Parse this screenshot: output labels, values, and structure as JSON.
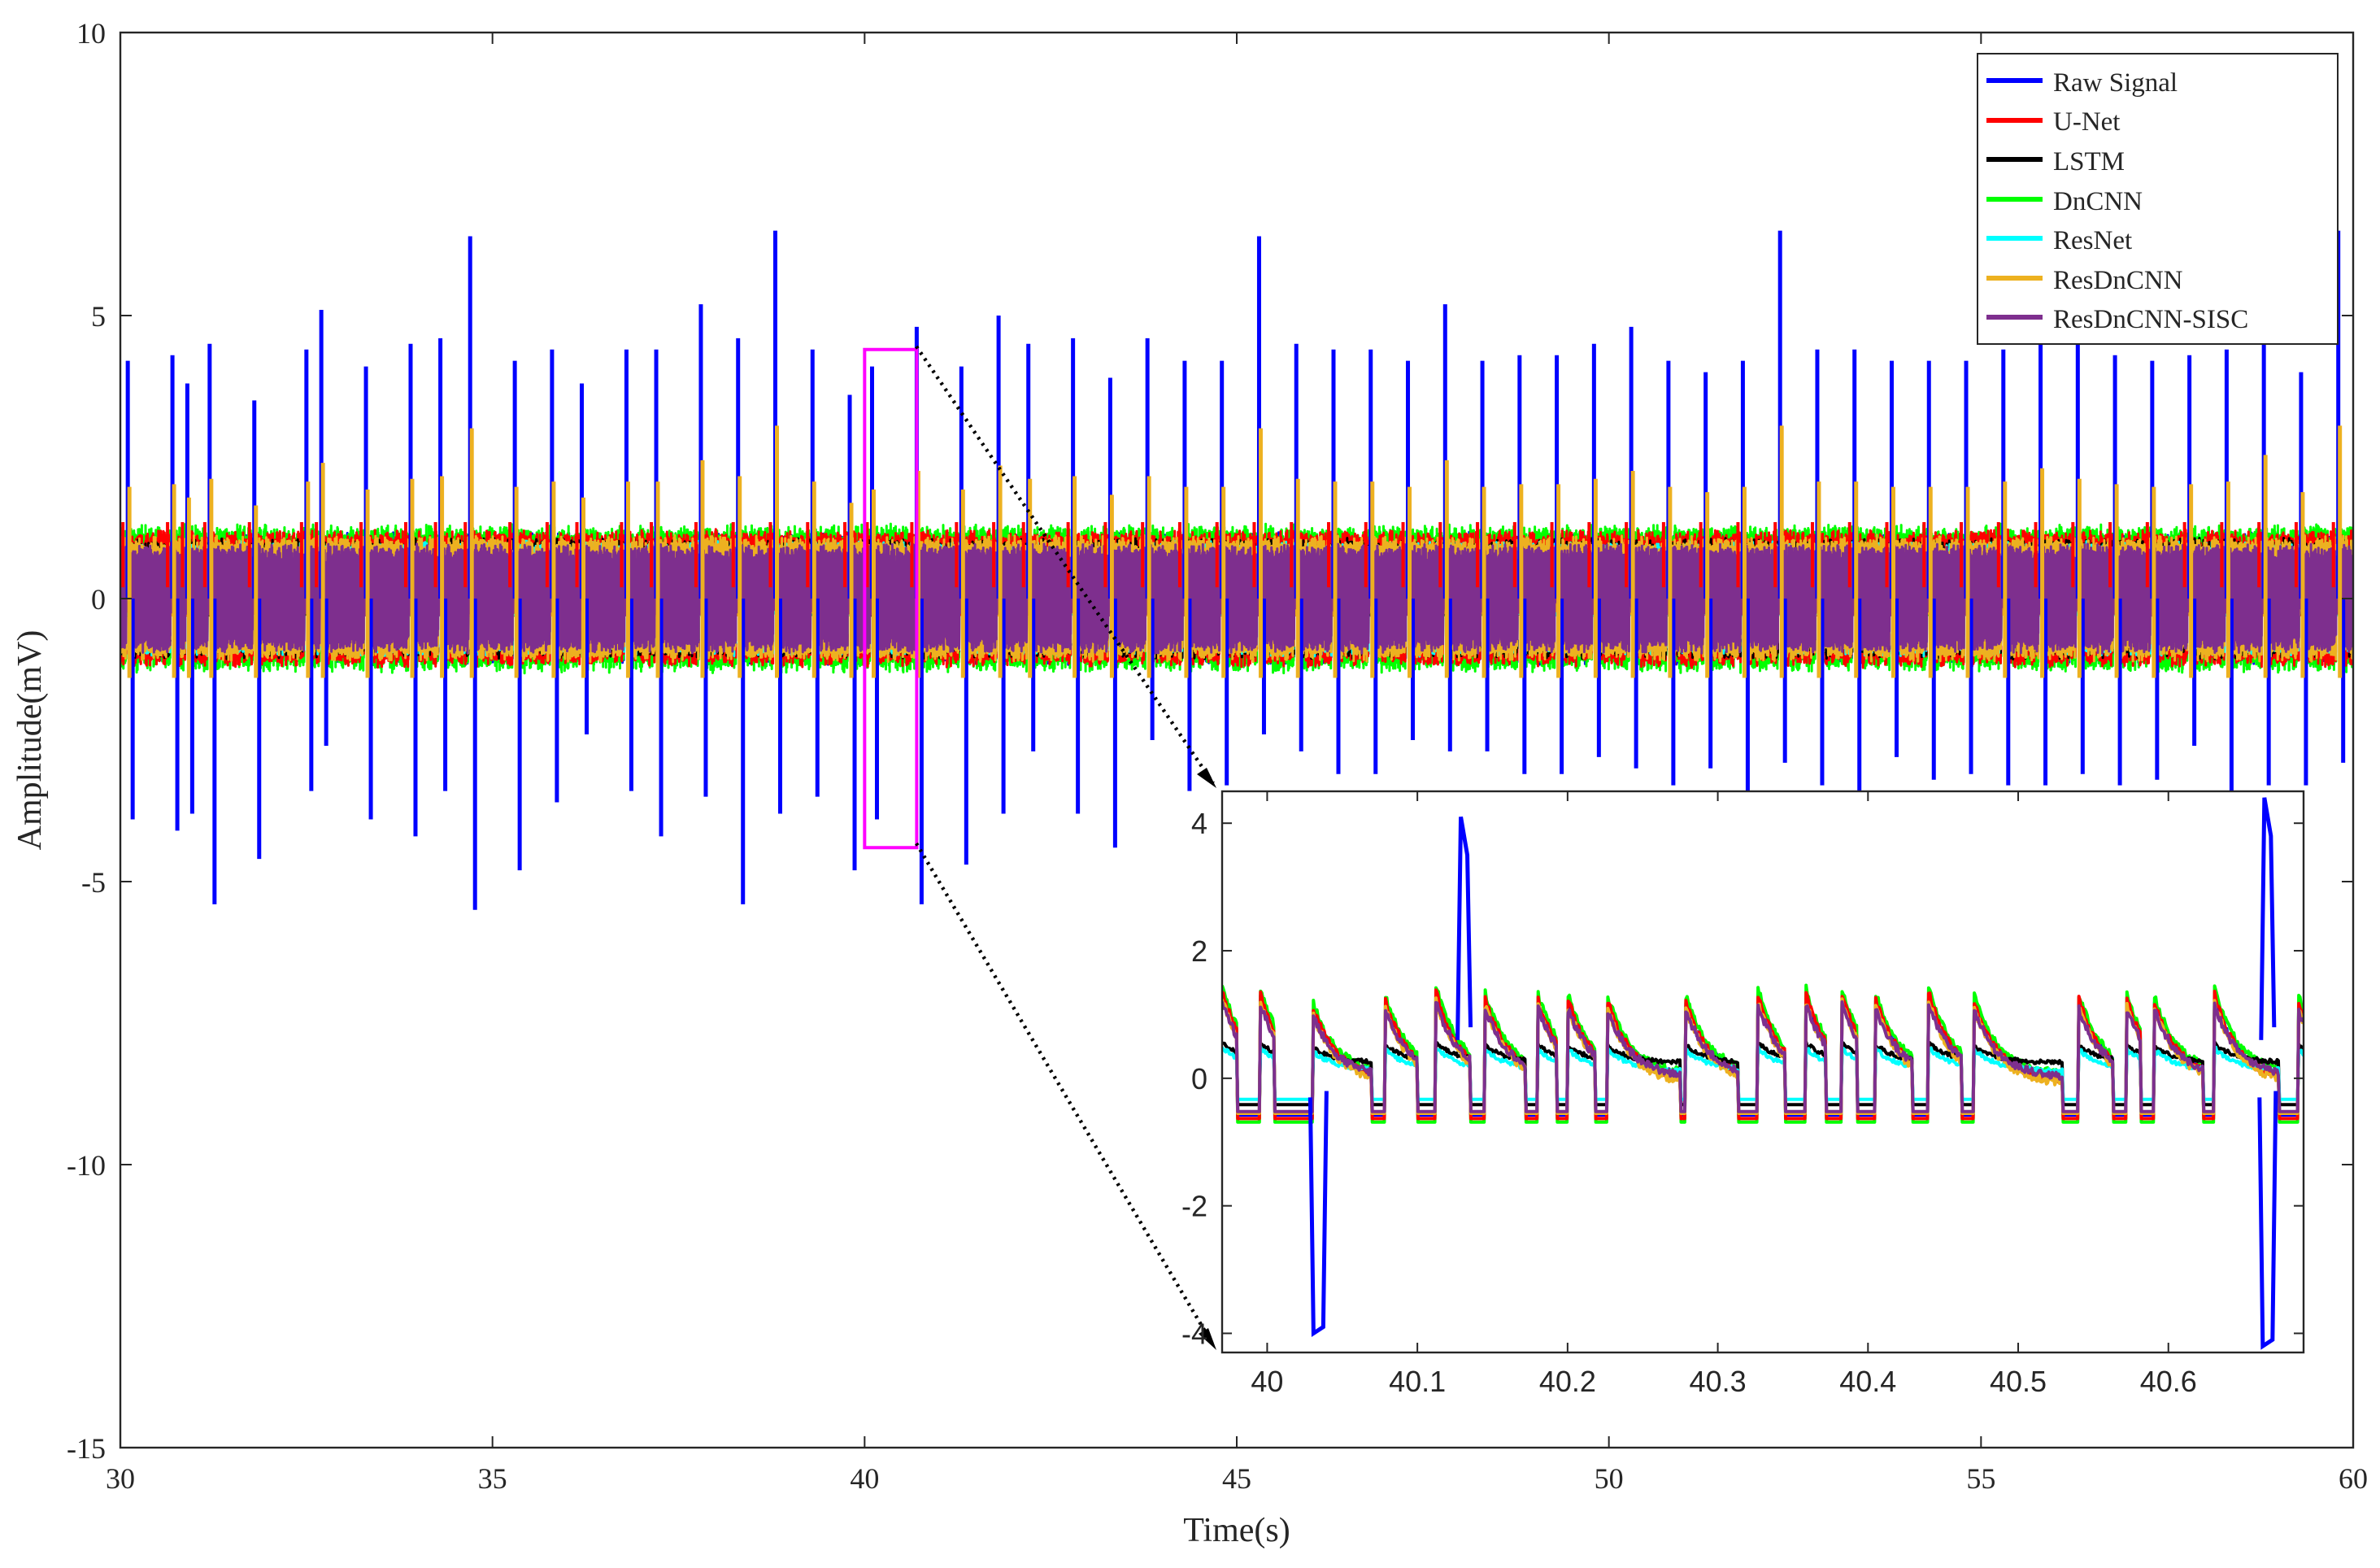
{
  "chart_data": [
    {
      "id": "main",
      "type": "line",
      "title": "",
      "xlabel": "Time(s)",
      "ylabel": "Amplitude(mV)",
      "xlim": [
        30,
        60
      ],
      "ylim": [
        -15,
        10
      ],
      "xticks": [
        30,
        35,
        40,
        45,
        50,
        55,
        60
      ],
      "yticks": [
        10,
        5,
        0,
        -5,
        -10,
        -15
      ],
      "xtick_labels": [
        "30",
        "35",
        "40",
        "45",
        "50",
        "55",
        "60"
      ],
      "ytick_labels": [
        "10",
        "5",
        "0",
        "-5",
        "-10",
        "-15"
      ],
      "grid": false,
      "legend": "top-right",
      "sample_rate_hz": 360,
      "series": [
        {
          "name": "Raw Signal",
          "color": "#0000ff"
        },
        {
          "name": "U-Net",
          "color": "#ff0000"
        },
        {
          "name": "LSTM",
          "color": "#000000"
        },
        {
          "name": "DnCNN",
          "color": "#00ff00"
        },
        {
          "name": "ResNet",
          "color": "#00ffff"
        },
        {
          "name": "ResDnCNN",
          "color": "#edb120"
        },
        {
          "name": "ResDnCNN-SISC",
          "color": "#7e2f8e"
        }
      ],
      "beats_s": [
        30.1,
        30.7,
        30.9,
        31.2,
        31.8,
        32.5,
        32.7,
        33.3,
        33.9,
        34.3,
        34.7,
        35.3,
        35.8,
        36.2,
        36.8,
        37.2,
        37.8,
        38.3,
        38.8,
        39.3,
        39.8,
        40.1,
        40.7,
        41.3,
        41.8,
        42.2,
        42.8,
        43.3,
        43.8,
        44.3,
        44.8,
        45.3,
        45.8,
        46.3,
        46.8,
        47.3,
        47.8,
        48.3,
        48.8,
        49.3,
        49.8,
        50.3,
        50.8,
        51.3,
        51.8,
        52.3,
        52.8,
        53.3,
        53.8,
        54.3,
        54.8,
        55.3,
        55.8,
        56.3,
        56.8,
        57.3,
        57.8,
        58.3,
        58.8,
        59.3,
        59.8
      ],
      "raw_spike_peaks_mV": [
        4.2,
        4.3,
        3.8,
        4.5,
        3.5,
        4.4,
        5.1,
        4.1,
        4.5,
        4.6,
        6.4,
        4.2,
        4.4,
        3.8,
        4.4,
        4.4,
        5.2,
        4.6,
        6.5,
        4.4,
        3.6,
        4.1,
        4.8,
        4.1,
        5.0,
        4.5,
        4.6,
        3.9,
        4.6,
        4.2,
        4.2,
        6.4,
        4.5,
        4.4,
        4.4,
        4.2,
        5.2,
        4.2,
        4.3,
        4.3,
        4.5,
        4.8,
        4.2,
        4.0,
        4.2,
        6.5,
        4.4,
        4.4,
        4.2,
        4.2,
        4.2,
        4.4,
        4.9,
        4.5,
        4.3,
        4.2,
        4.3,
        4.4,
        5.4,
        4.0,
        6.5
      ],
      "raw_spike_troughs_mV": [
        -3.9,
        -4.1,
        -3.8,
        -5.4,
        -4.6,
        -3.4,
        -2.6,
        -3.9,
        -4.2,
        -3.4,
        -5.5,
        -4.8,
        -3.6,
        -2.4,
        -3.4,
        -4.2,
        -3.5,
        -5.4,
        -3.8,
        -3.5,
        -4.8,
        -3.9,
        -5.4,
        -4.7,
        -3.8,
        -2.7,
        -3.8,
        -4.4,
        -2.5,
        -3.4,
        -3.3,
        -2.4,
        -2.7,
        -3.1,
        -3.1,
        -2.5,
        -2.7,
        -2.7,
        -3.1,
        -3.1,
        -2.8,
        -3.0,
        -3.3,
        -3.0,
        -3.4,
        -2.9,
        -3.3,
        -3.8,
        -2.8,
        -3.2,
        -3.1,
        -3.3,
        -3.3,
        -3.1,
        -3.3,
        -3.2,
        -2.6,
        -3.4,
        -3.3,
        -3.3,
        -2.9
      ],
      "zoom_region": {
        "x": [
          40.0,
          40.7
        ],
        "y": [
          -4.4,
          4.4
        ]
      }
    },
    {
      "id": "inset",
      "type": "line",
      "title": "",
      "xlabel": "",
      "ylabel": "",
      "xlim": [
        39.97,
        40.69
      ],
      "ylim": [
        -4.3,
        4.5
      ],
      "xticks": [
        40,
        40.1,
        40.2,
        40.3,
        40.4,
        40.5,
        40.6
      ],
      "yticks": [
        4,
        2,
        0,
        -2,
        -4
      ],
      "xtick_labels": [
        "40",
        "40.1",
        "40.2",
        "40.3",
        "40.4",
        "40.5",
        "40.6"
      ],
      "ytick_labels": [
        "4",
        "2",
        "0",
        "-2",
        "-4"
      ],
      "grid": false,
      "legend": "none",
      "blocks_s": [
        [
          39.98,
          39.995
        ],
        [
          40.005,
          40.03
        ],
        [
          40.07,
          40.078
        ],
        [
          40.1,
          40.112
        ],
        [
          40.135,
          40.145
        ],
        [
          40.172,
          40.18
        ],
        [
          40.193,
          40.2
        ],
        [
          40.218,
          40.226
        ],
        [
          40.275,
          40.278
        ],
        [
          40.314,
          40.326
        ],
        [
          40.345,
          40.358
        ],
        [
          40.372,
          40.382
        ],
        [
          40.393,
          40.405
        ],
        [
          40.43,
          40.44
        ],
        [
          40.462,
          40.47
        ],
        [
          40.53,
          40.54
        ],
        [
          40.563,
          40.572
        ],
        [
          40.582,
          40.59
        ],
        [
          40.623,
          40.63
        ],
        [
          40.674,
          40.686
        ]
      ],
      "block_levels_mV": [
        0.9,
        0.7,
        0.8,
        0.9,
        0.8,
        0.8,
        0.8,
        0.8,
        0.8,
        0.9,
        0.9,
        0.9,
        0.8,
        0.9,
        0.8,
        0.8,
        0.8,
        0.8,
        0.9,
        0.8
      ],
      "raw_spikes": [
        {
          "t": 40.13,
          "peak_mV": 4.1
        },
        {
          "t": 40.033,
          "trough_mV": -4.0
        },
        {
          "t": 40.665,
          "peak_mV": 4.4,
          "trough_mV": -4.2
        }
      ]
    }
  ]
}
